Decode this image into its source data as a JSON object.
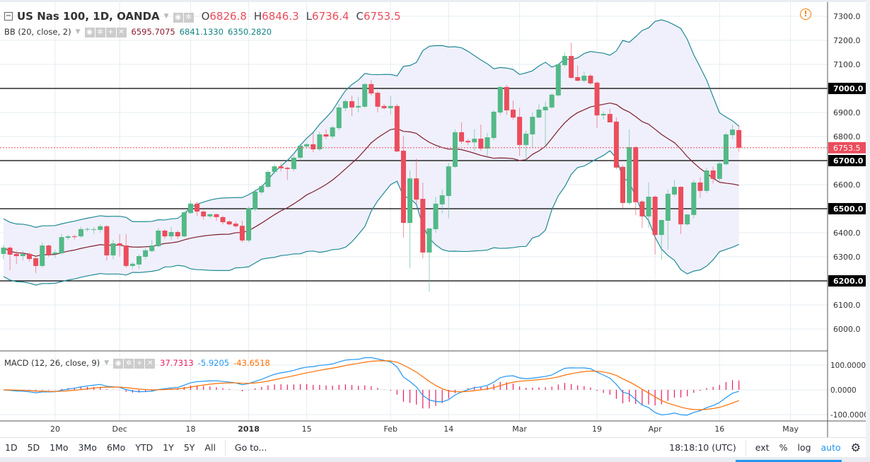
{
  "header": {
    "symbol_title": "US Nas 100, 1D, OANDA",
    "ohlc": {
      "o_label": "O",
      "o": "6826.8",
      "h_label": "H",
      "h": "6846.3",
      "l_label": "L",
      "l": "6736.4",
      "c_label": "C",
      "c": "6753.5"
    }
  },
  "bb": {
    "label": "BB (20, close, 2)",
    "basis": "6595.7075",
    "upper": "6841.1330",
    "lower": "6350.2820"
  },
  "macd": {
    "label": "MACD (12, 26, close, 9)",
    "histogram": "37.7313",
    "macd": "-5.9205",
    "signal": "-43.6518"
  },
  "icons": {
    "collapse": "minus-square-icon",
    "eye": "eye-icon",
    "settings": "gear-icon",
    "add": "plus-icon",
    "remove": "close-icon",
    "alert": "alert-circle-icon"
  },
  "colors": {
    "up": "#53b987",
    "down": "#eb4d5c",
    "bb_basis": "#7f1d2f",
    "bb_band": "#1f8a96",
    "bb_fill": "#f0f0fc",
    "macd": "#2196f3",
    "signal": "#ff6d00",
    "hist": "#e91e63",
    "hline": "#000000"
  },
  "price_axis": {
    "ticks": [
      "7300.0",
      "7200.0",
      "7100.0",
      "7000.0",
      "6900.0",
      "6800.0",
      "6700.0",
      "6600.0",
      "6500.0",
      "6400.0",
      "6300.0",
      "6200.0",
      "6100.0",
      "6000.0"
    ],
    "highlighted": [
      "7000.0",
      "6700.0",
      "6500.0",
      "6200.0"
    ],
    "current": "6753.5"
  },
  "macd_axis": {
    "ticks": [
      "100.0000",
      "0.0000",
      "-100.0000"
    ]
  },
  "time_axis": {
    "labels": [
      "20",
      "Dec",
      "18",
      "2018",
      "15",
      "Feb",
      "14",
      "Mar",
      "19",
      "Apr",
      "16",
      "May"
    ]
  },
  "toolbar": {
    "ranges": [
      "1D",
      "5D",
      "1Mo",
      "3Mo",
      "6Mo",
      "YTD",
      "1Y",
      "5Y",
      "All"
    ],
    "goto": "Go to...",
    "clock": "18:18:10 (UTC)",
    "ext": "ext",
    "percent": "%",
    "log": "log",
    "auto": "auto"
  },
  "chart_data": {
    "type": "candlestick",
    "interval": "1D",
    "price_range": [
      5950,
      7330
    ],
    "horizontal_lines": [
      7000,
      6700,
      6500,
      6200
    ],
    "ohlc": [
      [
        6312,
        6350,
        6290,
        6338
      ],
      [
        6338,
        6345,
        6244,
        6309
      ],
      [
        6312,
        6325,
        6270,
        6303
      ],
      [
        6303,
        6325,
        6285,
        6312
      ],
      [
        6312,
        6318,
        6280,
        6291
      ],
      [
        6294,
        6300,
        6232,
        6262
      ],
      [
        6262,
        6360,
        6255,
        6347
      ],
      [
        6347,
        6352,
        6300,
        6309
      ],
      [
        6312,
        6330,
        6295,
        6318
      ],
      [
        6315,
        6395,
        6310,
        6382
      ],
      [
        6379,
        6392,
        6370,
        6385
      ],
      [
        6385,
        6392,
        6372,
        6383
      ],
      [
        6385,
        6425,
        6380,
        6415
      ],
      [
        6415,
        6422,
        6405,
        6416
      ],
      [
        6415,
        6425,
        6395,
        6415
      ],
      [
        6412,
        6435,
        6400,
        6427
      ],
      [
        6427,
        6432,
        6285,
        6306
      ],
      [
        6306,
        6370,
        6290,
        6356
      ],
      [
        6356,
        6394,
        6300,
        6347
      ],
      [
        6347,
        6394,
        6255,
        6262
      ],
      [
        6262,
        6278,
        6250,
        6271
      ],
      [
        6268,
        6310,
        6250,
        6303
      ],
      [
        6300,
        6335,
        6290,
        6327
      ],
      [
        6324,
        6370,
        6318,
        6347
      ],
      [
        6344,
        6420,
        6340,
        6409
      ],
      [
        6409,
        6415,
        6375,
        6385
      ],
      [
        6385,
        6425,
        6370,
        6403
      ],
      [
        6403,
        6410,
        6375,
        6385
      ],
      [
        6385,
        6490,
        6380,
        6485
      ],
      [
        6482,
        6535,
        6478,
        6521
      ],
      [
        6521,
        6530,
        6470,
        6488
      ],
      [
        6488,
        6495,
        6455,
        6468
      ],
      [
        6468,
        6480,
        6460,
        6477
      ],
      [
        6477,
        6480,
        6450,
        6465
      ],
      [
        6465,
        6470,
        6435,
        6444
      ],
      [
        6447,
        6452,
        6430,
        6435
      ],
      [
        6438,
        6448,
        6420,
        6427
      ],
      [
        6429,
        6450,
        6360,
        6368
      ],
      [
        6368,
        6510,
        6360,
        6503
      ],
      [
        6497,
        6580,
        6490,
        6571
      ],
      [
        6568,
        6600,
        6560,
        6594
      ],
      [
        6591,
        6660,
        6585,
        6653
      ],
      [
        6653,
        6685,
        6645,
        6676
      ],
      [
        6676,
        6690,
        6655,
        6668
      ],
      [
        6670,
        6675,
        6620,
        6665
      ],
      [
        6665,
        6720,
        6655,
        6712
      ],
      [
        6712,
        6770,
        6705,
        6762
      ],
      [
        6759,
        6775,
        6750,
        6768
      ],
      [
        6768,
        6815,
        6735,
        6747
      ],
      [
        6747,
        6820,
        6740,
        6809
      ],
      [
        6809,
        6830,
        6790,
        6800
      ],
      [
        6800,
        6845,
        6790,
        6838
      ],
      [
        6835,
        6935,
        6825,
        6921
      ],
      [
        6918,
        6955,
        6905,
        6947
      ],
      [
        6947,
        6970,
        6885,
        6921
      ],
      [
        6921,
        6965,
        6900,
        6927
      ],
      [
        6924,
        7022,
        6920,
        7018
      ],
      [
        7018,
        7035,
        6970,
        6979
      ],
      [
        6982,
        6990,
        6900,
        6924
      ],
      [
        6927,
        6935,
        6912,
        6918
      ],
      [
        6918,
        6970,
        6890,
        6927
      ],
      [
        6927,
        6935,
        6735,
        6738
      ],
      [
        6741,
        6803,
        6379,
        6441
      ],
      [
        6441,
        6660,
        6253,
        6626
      ],
      [
        6626,
        6709,
        6520,
        6538
      ],
      [
        6541,
        6609,
        6294,
        6318
      ],
      [
        6318,
        6420,
        6156,
        6418
      ],
      [
        6415,
        6550,
        6400,
        6521
      ],
      [
        6518,
        6580,
        6480,
        6556
      ],
      [
        6553,
        6690,
        6460,
        6676
      ],
      [
        6674,
        6830,
        6670,
        6818
      ],
      [
        6818,
        6860,
        6770,
        6779
      ],
      [
        6782,
        6790,
        6765,
        6776
      ],
      [
        6776,
        6830,
        6740,
        6791
      ],
      [
        6791,
        6850,
        6740,
        6750
      ],
      [
        6750,
        6815,
        6715,
        6797
      ],
      [
        6794,
        6910,
        6785,
        6903
      ],
      [
        6900,
        7010,
        6890,
        7006
      ],
      [
        7006,
        7015,
        6890,
        6909
      ],
      [
        6912,
        6950,
        6870,
        6879
      ],
      [
        6882,
        6920,
        6720,
        6765
      ],
      [
        6765,
        6825,
        6700,
        6812
      ],
      [
        6809,
        6900,
        6755,
        6882
      ],
      [
        6879,
        6935,
        6875,
        6912
      ],
      [
        6909,
        6945,
        6760,
        6924
      ],
      [
        6921,
        6980,
        6915,
        6974
      ],
      [
        6971,
        7105,
        6965,
        7100
      ],
      [
        7097,
        7150,
        7090,
        7135
      ],
      [
        7135,
        7190,
        7040,
        7044
      ],
      [
        7047,
        7095,
        7030,
        7032
      ],
      [
        7032,
        7070,
        7025,
        7053
      ],
      [
        7053,
        7060,
        7015,
        7021
      ],
      [
        7024,
        7030,
        6835,
        6888
      ],
      [
        6888,
        6905,
        6870,
        6894
      ],
      [
        6894,
        6915,
        6860,
        6859
      ],
      [
        6862,
        6880,
        6665,
        6671
      ],
      [
        6674,
        6680,
        6500,
        6524
      ],
      [
        6524,
        6830,
        6515,
        6756
      ],
      [
        6756,
        6760,
        6473,
        6527
      ],
      [
        6530,
        6535,
        6420,
        6468
      ],
      [
        6468,
        6610,
        6420,
        6550
      ],
      [
        6550,
        6555,
        6309,
        6391
      ],
      [
        6391,
        6455,
        6288,
        6453
      ],
      [
        6450,
        6580,
        6330,
        6562
      ],
      [
        6559,
        6620,
        6550,
        6591
      ],
      [
        6591,
        6593,
        6395,
        6435
      ],
      [
        6435,
        6478,
        6430,
        6476
      ],
      [
        6474,
        6620,
        6460,
        6609
      ],
      [
        6609,
        6630,
        6545,
        6574
      ],
      [
        6574,
        6670,
        6565,
        6659
      ],
      [
        6659,
        6675,
        6605,
        6624
      ],
      [
        6624,
        6700,
        6615,
        6688
      ],
      [
        6685,
        6815,
        6680,
        6809
      ],
      [
        6806,
        6850,
        6790,
        6829
      ],
      [
        6826.8,
        6846.3,
        6736.4,
        6753.5
      ]
    ],
    "indicators": {
      "bollinger": {
        "period": 20,
        "source": "close",
        "stddev": 2
      },
      "macd": {
        "fast": 12,
        "slow": 26,
        "source": "close",
        "signal": 9
      }
    },
    "macd_range": [
      -115,
      125
    ]
  }
}
